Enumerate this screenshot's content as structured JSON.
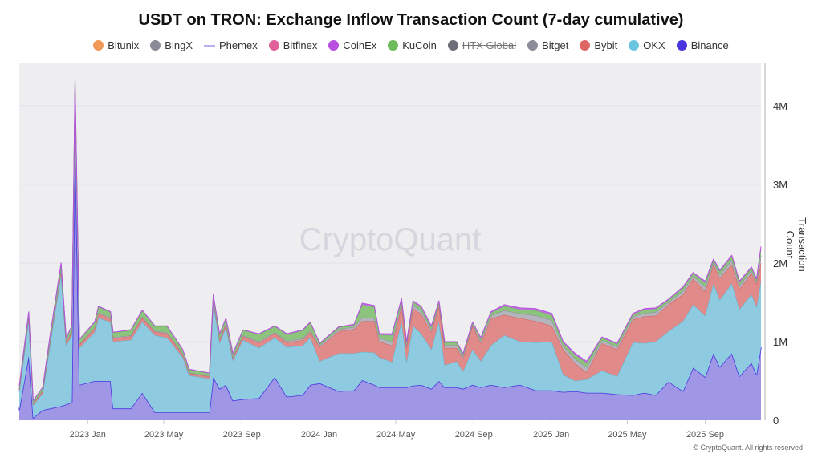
{
  "chart_data": {
    "type": "area",
    "stacked": true,
    "title": "USDT on TRON: Exchange Inflow Transaction Count (7-day cumulative)",
    "ylabel": "Transaction Count",
    "xlabel": "",
    "ylim": [
      0,
      4.55
    ],
    "y_unit": "M",
    "yticks": [
      {
        "v": 0,
        "label": "0"
      },
      {
        "v": 1,
        "label": "1M"
      },
      {
        "v": 2,
        "label": "2M"
      },
      {
        "v": 3,
        "label": "3M"
      },
      {
        "v": 4,
        "label": "4M"
      }
    ],
    "xlim": [
      "2022-09-15",
      "2025-11-28"
    ],
    "xticks": [
      {
        "date": "2023-01-01",
        "label": "2023 Jan"
      },
      {
        "date": "2023-05-01",
        "label": "2023 May"
      },
      {
        "date": "2023-09-01",
        "label": "2023 Sep"
      },
      {
        "date": "2024-01-01",
        "label": "2024 Jan"
      },
      {
        "date": "2024-05-01",
        "label": "2024 May"
      },
      {
        "date": "2024-09-01",
        "label": "2024 Sep"
      },
      {
        "date": "2025-01-01",
        "label": "2025 Jan"
      },
      {
        "date": "2025-05-01",
        "label": "2025 May"
      },
      {
        "date": "2025-09-01",
        "label": "2025 Sep"
      }
    ],
    "grid": true,
    "legend_position": "top",
    "watermark": "CryptoQuant",
    "copyright": "© CryptoQuant. All rights reserved",
    "legend": [
      {
        "name": "Bitunix",
        "color": "#f29a5a",
        "marker": "dot"
      },
      {
        "name": "BingX",
        "color": "#8a8a96",
        "marker": "dot"
      },
      {
        "name": "Phemex",
        "color": "#b8b0f0",
        "marker": "line"
      },
      {
        "name": "Bitfinex",
        "color": "#e0609a",
        "marker": "dot"
      },
      {
        "name": "CoinEx",
        "color": "#b84fe0",
        "marker": "dot"
      },
      {
        "name": "KuCoin",
        "color": "#6dbb5b",
        "marker": "dot"
      },
      {
        "name": "HTX Global",
        "color": "#6e6e7a",
        "marker": "dot",
        "hidden": true
      },
      {
        "name": "Bitget",
        "color": "#8c8c98",
        "marker": "dot"
      },
      {
        "name": "Bybit",
        "color": "#e06666",
        "marker": "dot"
      },
      {
        "name": "OKX",
        "color": "#6cc5e0",
        "marker": "dot"
      },
      {
        "name": "Binance",
        "color": "#4b35e0",
        "marker": "dot"
      }
    ],
    "x": [
      "2022-09-15",
      "2022-09-30",
      "2022-10-07",
      "2022-10-22",
      "2022-11-03",
      "2022-11-20",
      "2022-11-28",
      "2022-12-07",
      "2022-12-12",
      "2022-12-19",
      "2023-01-12",
      "2023-01-18",
      "2023-02-06",
      "2023-02-10",
      "2023-03-10",
      "2023-03-28",
      "2023-04-17",
      "2023-05-06",
      "2023-05-31",
      "2023-06-10",
      "2023-07-12",
      "2023-07-18",
      "2023-07-28",
      "2023-08-07",
      "2023-08-18",
      "2023-09-03",
      "2023-09-28",
      "2023-10-23",
      "2023-11-11",
      "2023-12-06",
      "2023-12-18",
      "2024-01-02",
      "2024-02-01",
      "2024-02-25",
      "2024-03-09",
      "2024-03-28",
      "2024-04-05",
      "2024-04-25",
      "2024-05-10",
      "2024-05-18",
      "2024-05-28",
      "2024-06-10",
      "2024-06-26",
      "2024-07-08",
      "2024-07-17",
      "2024-08-05",
      "2024-08-15",
      "2024-08-30",
      "2024-09-12",
      "2024-09-28",
      "2024-10-19",
      "2024-11-13",
      "2024-12-08",
      "2025-01-02",
      "2025-01-20",
      "2025-02-08",
      "2025-02-26",
      "2025-03-22",
      "2025-04-15",
      "2025-05-10",
      "2025-05-28",
      "2025-06-15",
      "2025-07-05",
      "2025-07-28",
      "2025-08-13",
      "2025-09-01",
      "2025-09-14",
      "2025-09-24",
      "2025-10-13",
      "2025-10-25",
      "2025-11-13",
      "2025-11-21",
      "2025-11-28"
    ],
    "series": [
      {
        "name": "Binance",
        "fill": "#a096e6",
        "line": "#4b35e0",
        "values": [
          0.13,
          0.82,
          0.03,
          0.13,
          0.15,
          0.18,
          0.2,
          0.23,
          3.6,
          0.45,
          0.5,
          0.5,
          0.5,
          0.15,
          0.15,
          0.35,
          0.1,
          0.1,
          0.1,
          0.1,
          0.1,
          0.55,
          0.4,
          0.45,
          0.25,
          0.27,
          0.28,
          0.55,
          0.3,
          0.32,
          0.45,
          0.47,
          0.37,
          0.38,
          0.51,
          0.45,
          0.42,
          0.42,
          0.42,
          0.42,
          0.44,
          0.45,
          0.4,
          0.5,
          0.42,
          0.42,
          0.4,
          0.45,
          0.42,
          0.45,
          0.42,
          0.45,
          0.38,
          0.38,
          0.36,
          0.37,
          0.35,
          0.35,
          0.33,
          0.32,
          0.35,
          0.32,
          0.49,
          0.37,
          0.67,
          0.55,
          0.85,
          0.68,
          0.85,
          0.56,
          0.73,
          0.58,
          0.93
        ]
      },
      {
        "name": "OKX",
        "fill": "#8fcbe0",
        "line": "#5ab8d8",
        "values": [
          0.23,
          0.46,
          0.16,
          0.21,
          0.83,
          1.67,
          0.75,
          0.85,
          0.5,
          0.47,
          0.62,
          0.8,
          0.75,
          0.85,
          0.87,
          0.9,
          0.98,
          0.95,
          0.7,
          0.47,
          0.43,
          0.95,
          0.58,
          0.73,
          0.51,
          0.75,
          0.64,
          0.5,
          0.63,
          0.63,
          0.6,
          0.28,
          0.48,
          0.47,
          0.36,
          0.41,
          0.38,
          0.32,
          0.84,
          0.32,
          0.76,
          0.65,
          0.5,
          0.75,
          0.28,
          0.33,
          0.22,
          0.45,
          0.33,
          0.5,
          0.66,
          0.55,
          0.61,
          0.62,
          0.22,
          0.13,
          0.17,
          0.28,
          0.23,
          0.67,
          0.63,
          0.68,
          0.64,
          0.89,
          0.8,
          0.78,
          0.89,
          0.85,
          0.89,
          0.85,
          0.87,
          0.86,
          0.84
        ]
      },
      {
        "name": "Bybit",
        "fill": "#e08a8a",
        "line": "#d85a5a",
        "values": [
          0.028,
          0.035,
          0.021,
          0.028,
          0.042,
          0.053,
          0.035,
          0.042,
          0.088,
          0.039,
          0.046,
          0.053,
          0.046,
          0.042,
          0.046,
          0.053,
          0.042,
          0.053,
          0.035,
          0.028,
          0.025,
          0.035,
          0.042,
          0.042,
          0.032,
          0.046,
          0.063,
          0.053,
          0.06,
          0.07,
          0.07,
          0.18,
          0.28,
          0.31,
          0.39,
          0.4,
          0.2,
          0.21,
          0.19,
          0.18,
          0.22,
          0.25,
          0.22,
          0.2,
          0.22,
          0.17,
          0.16,
          0.3,
          0.23,
          0.34,
          0.26,
          0.3,
          0.27,
          0.2,
          0.32,
          0.22,
          0.09,
          0.35,
          0.34,
          0.29,
          0.34,
          0.33,
          0.34,
          0.34,
          0.33,
          0.31,
          0.24,
          0.28,
          0.24,
          0.26,
          0.27,
          0.29,
          0.23
        ]
      },
      {
        "name": "Bitget",
        "fill": "#b4b4bc",
        "line": "#8c8c98",
        "values": [
          0.008,
          0.01,
          0.006,
          0.008,
          0.012,
          0.015,
          0.01,
          0.012,
          0.025,
          0.011,
          0.013,
          0.015,
          0.013,
          0.012,
          0.013,
          0.015,
          0.012,
          0.015,
          0.01,
          0.008,
          0.007,
          0.01,
          0.012,
          0.012,
          0.009,
          0.013,
          0.018,
          0.015,
          0.017,
          0.02,
          0.02,
          0.023,
          0.027,
          0.027,
          0.05,
          0.04,
          0.045,
          0.05,
          0.045,
          0.036,
          0.045,
          0.045,
          0.036,
          0.032,
          0.036,
          0.036,
          0.032,
          0.023,
          0.032,
          0.04,
          0.058,
          0.058,
          0.072,
          0.072,
          0.045,
          0.058,
          0.063,
          0.036,
          0.036,
          0.036,
          0.045,
          0.045,
          0.032,
          0.045,
          0.036,
          0.058,
          0.032,
          0.045,
          0.054,
          0.045,
          0.036,
          0.032,
          0.095
        ]
      },
      {
        "name": "KuCoin",
        "fill": "#8cc47e",
        "line": "#6dbb5b",
        "values": [
          0.04,
          0.05,
          0.03,
          0.04,
          0.06,
          0.075,
          0.05,
          0.06,
          0.125,
          0.055,
          0.065,
          0.075,
          0.065,
          0.06,
          0.065,
          0.075,
          0.06,
          0.075,
          0.05,
          0.04,
          0.035,
          0.05,
          0.06,
          0.06,
          0.045,
          0.065,
          0.09,
          0.075,
          0.085,
          0.1,
          0.1,
          0.02,
          0.024,
          0.024,
          0.16,
          0.14,
          0.04,
          0.08,
          0.04,
          0.032,
          0.04,
          0.04,
          0.032,
          0.028,
          0.032,
          0.032,
          0.028,
          0.02,
          0.028,
          0.036,
          0.052,
          0.052,
          0.064,
          0.064,
          0.04,
          0.052,
          0.056,
          0.032,
          0.032,
          0.032,
          0.04,
          0.04,
          0.028,
          0.04,
          0.032,
          0.052,
          0.028,
          0.04,
          0.048,
          0.04,
          0.032,
          0.028,
          0.084
        ]
      },
      {
        "name": "CoinEx",
        "fill": "#c070e0",
        "line": "#b84fe0",
        "values": [
          0.004,
          0.005,
          0.003,
          0.004,
          0.006,
          0.008,
          0.005,
          0.006,
          0.013,
          0.006,
          0.007,
          0.008,
          0.007,
          0.006,
          0.007,
          0.008,
          0.006,
          0.008,
          0.005,
          0.004,
          0.004,
          0.005,
          0.006,
          0.006,
          0.005,
          0.007,
          0.009,
          0.008,
          0.009,
          0.01,
          0.01,
          0.008,
          0.009,
          0.009,
          0.02,
          0.02,
          0.015,
          0.02,
          0.015,
          0.012,
          0.015,
          0.015,
          0.012,
          0.01,
          0.012,
          0.012,
          0.01,
          0.007,
          0.01,
          0.014,
          0.02,
          0.02,
          0.024,
          0.024,
          0.015,
          0.02,
          0.021,
          0.012,
          0.012,
          0.012,
          0.015,
          0.015,
          0.01,
          0.015,
          0.012,
          0.02,
          0.01,
          0.015,
          0.018,
          0.015,
          0.012,
          0.01,
          0.031
        ]
      }
    ]
  }
}
